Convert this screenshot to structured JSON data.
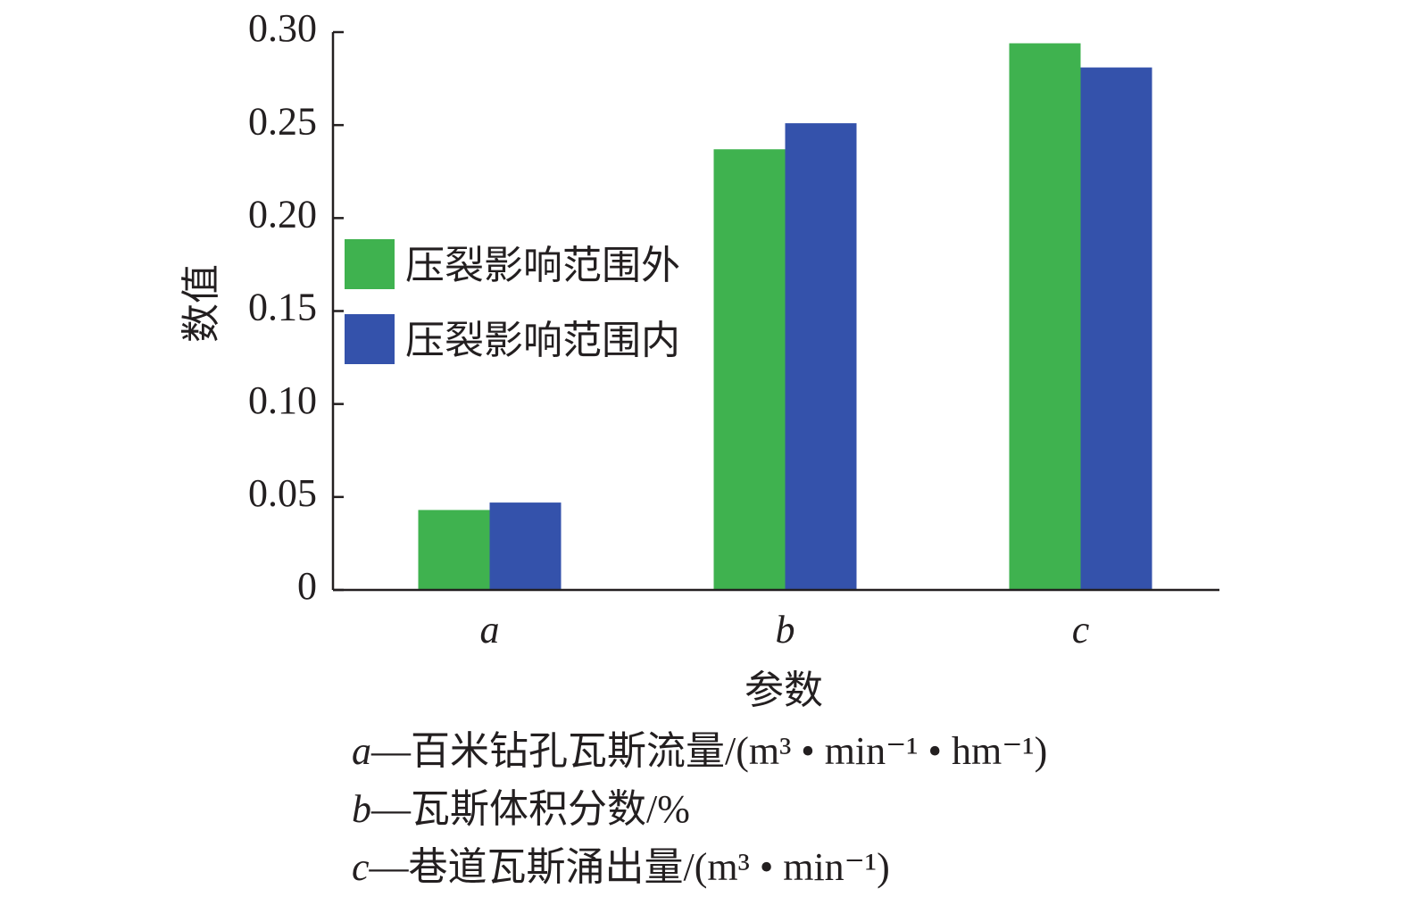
{
  "chart_data": {
    "type": "bar",
    "categories": [
      "a",
      "b",
      "c"
    ],
    "series": [
      {
        "name": "压裂影响范围外",
        "values": [
          0.043,
          0.237,
          0.294
        ],
        "color": "#3fb24f"
      },
      {
        "name": "压裂影响范围内",
        "values": [
          0.047,
          0.251,
          0.281
        ],
        "color": "#3452ab"
      }
    ],
    "xlabel": "参数",
    "ylabel": "数值",
    "ylim": [
      0,
      0.3
    ],
    "yticks": [
      "0",
      "0.05",
      "0.10",
      "0.15",
      "0.20",
      "0.25",
      "0.30"
    ],
    "legend_position": "upper-left",
    "grid": false,
    "notes": [
      {
        "key": "a",
        "text": "—百米钻孔瓦斯流量/(m³ • min⁻¹ • hm⁻¹)"
      },
      {
        "key": "b",
        "text": "—瓦斯体积分数/%"
      },
      {
        "key": "c",
        "text": "—巷道瓦斯涌出量/(m³ • min⁻¹)"
      }
    ]
  }
}
